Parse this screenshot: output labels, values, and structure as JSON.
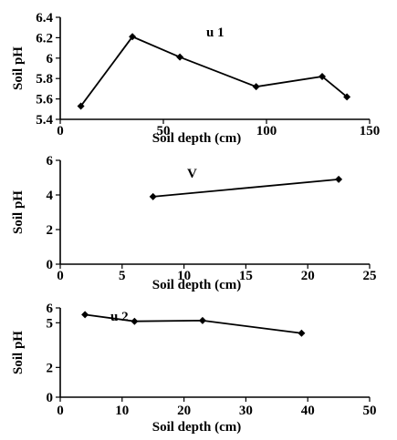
{
  "chart_data": [
    {
      "type": "line",
      "panel_label": "u 1",
      "xlabel": "Soil depth (cm)",
      "ylabel": "Soil pH",
      "xlim": [
        0,
        150
      ],
      "ylim": [
        5.4,
        6.4
      ],
      "xticks": [
        0,
        50,
        100,
        150
      ],
      "yticks": [
        5.4,
        5.6,
        5.8,
        6,
        6.2,
        6.4
      ],
      "grid": false,
      "series": [
        {
          "x": [
            10,
            35,
            58,
            95,
            127,
            139
          ],
          "y": [
            5.53,
            6.21,
            6.01,
            5.72,
            5.82,
            5.62
          ]
        }
      ]
    },
    {
      "type": "line",
      "panel_label": "V",
      "xlabel": "Soil depth (cm)",
      "ylabel": "Soil pH",
      "xlim": [
        0,
        25
      ],
      "ylim": [
        0,
        6
      ],
      "xticks": [
        0,
        5,
        10,
        15,
        20,
        25
      ],
      "yticks": [
        0,
        2,
        4,
        6
      ],
      "grid": false,
      "series": [
        {
          "x": [
            7.5,
            22.5
          ],
          "y": [
            3.9,
            4.9
          ]
        }
      ]
    },
    {
      "type": "line",
      "panel_label": "u 2",
      "xlabel": "Soil depth (cm)",
      "ylabel": "Soil pH",
      "xlim": [
        0,
        50
      ],
      "ylim": [
        0,
        6
      ],
      "xticks": [
        0,
        10,
        20,
        30,
        40,
        50
      ],
      "yticks": [
        0,
        2,
        5,
        6
      ],
      "grid": false,
      "series": [
        {
          "x": [
            4,
            12,
            23,
            39
          ],
          "y": [
            5.55,
            5.1,
            5.15,
            4.3
          ]
        }
      ]
    }
  ]
}
